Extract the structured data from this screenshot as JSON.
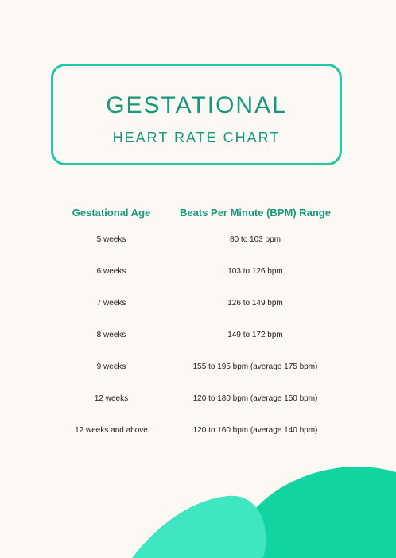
{
  "title": {
    "main": "GESTATIONAL",
    "sub": "HEART RATE CHART"
  },
  "table": {
    "headers": {
      "age": "Gestational Age",
      "bpm": "Beats Per Minute (BPM) Range"
    },
    "rows": [
      {
        "age": "5 weeks",
        "bpm": "80 to 103 bpm"
      },
      {
        "age": "6 weeks",
        "bpm": "103 to 126 bpm"
      },
      {
        "age": "7 weeks",
        "bpm": "126 to 149 bpm"
      },
      {
        "age": "8 weeks",
        "bpm": "149 to 172 bpm"
      },
      {
        "age": "9 weeks",
        "bpm": "155 to 195 bpm (average 175 bpm)"
      },
      {
        "age": "12 weeks",
        "bpm": "120 to 180 bpm (average 150 bpm)"
      },
      {
        "age": "12 weeks and above",
        "bpm": "120 to 160 bpm (average 140 bpm)"
      }
    ]
  },
  "colors": {
    "accent": "#16987b",
    "border": "#25c7a4",
    "background": "#fcf8f3",
    "blob_dark": "#12d4a0",
    "blob_light": "#3fe6c0"
  }
}
